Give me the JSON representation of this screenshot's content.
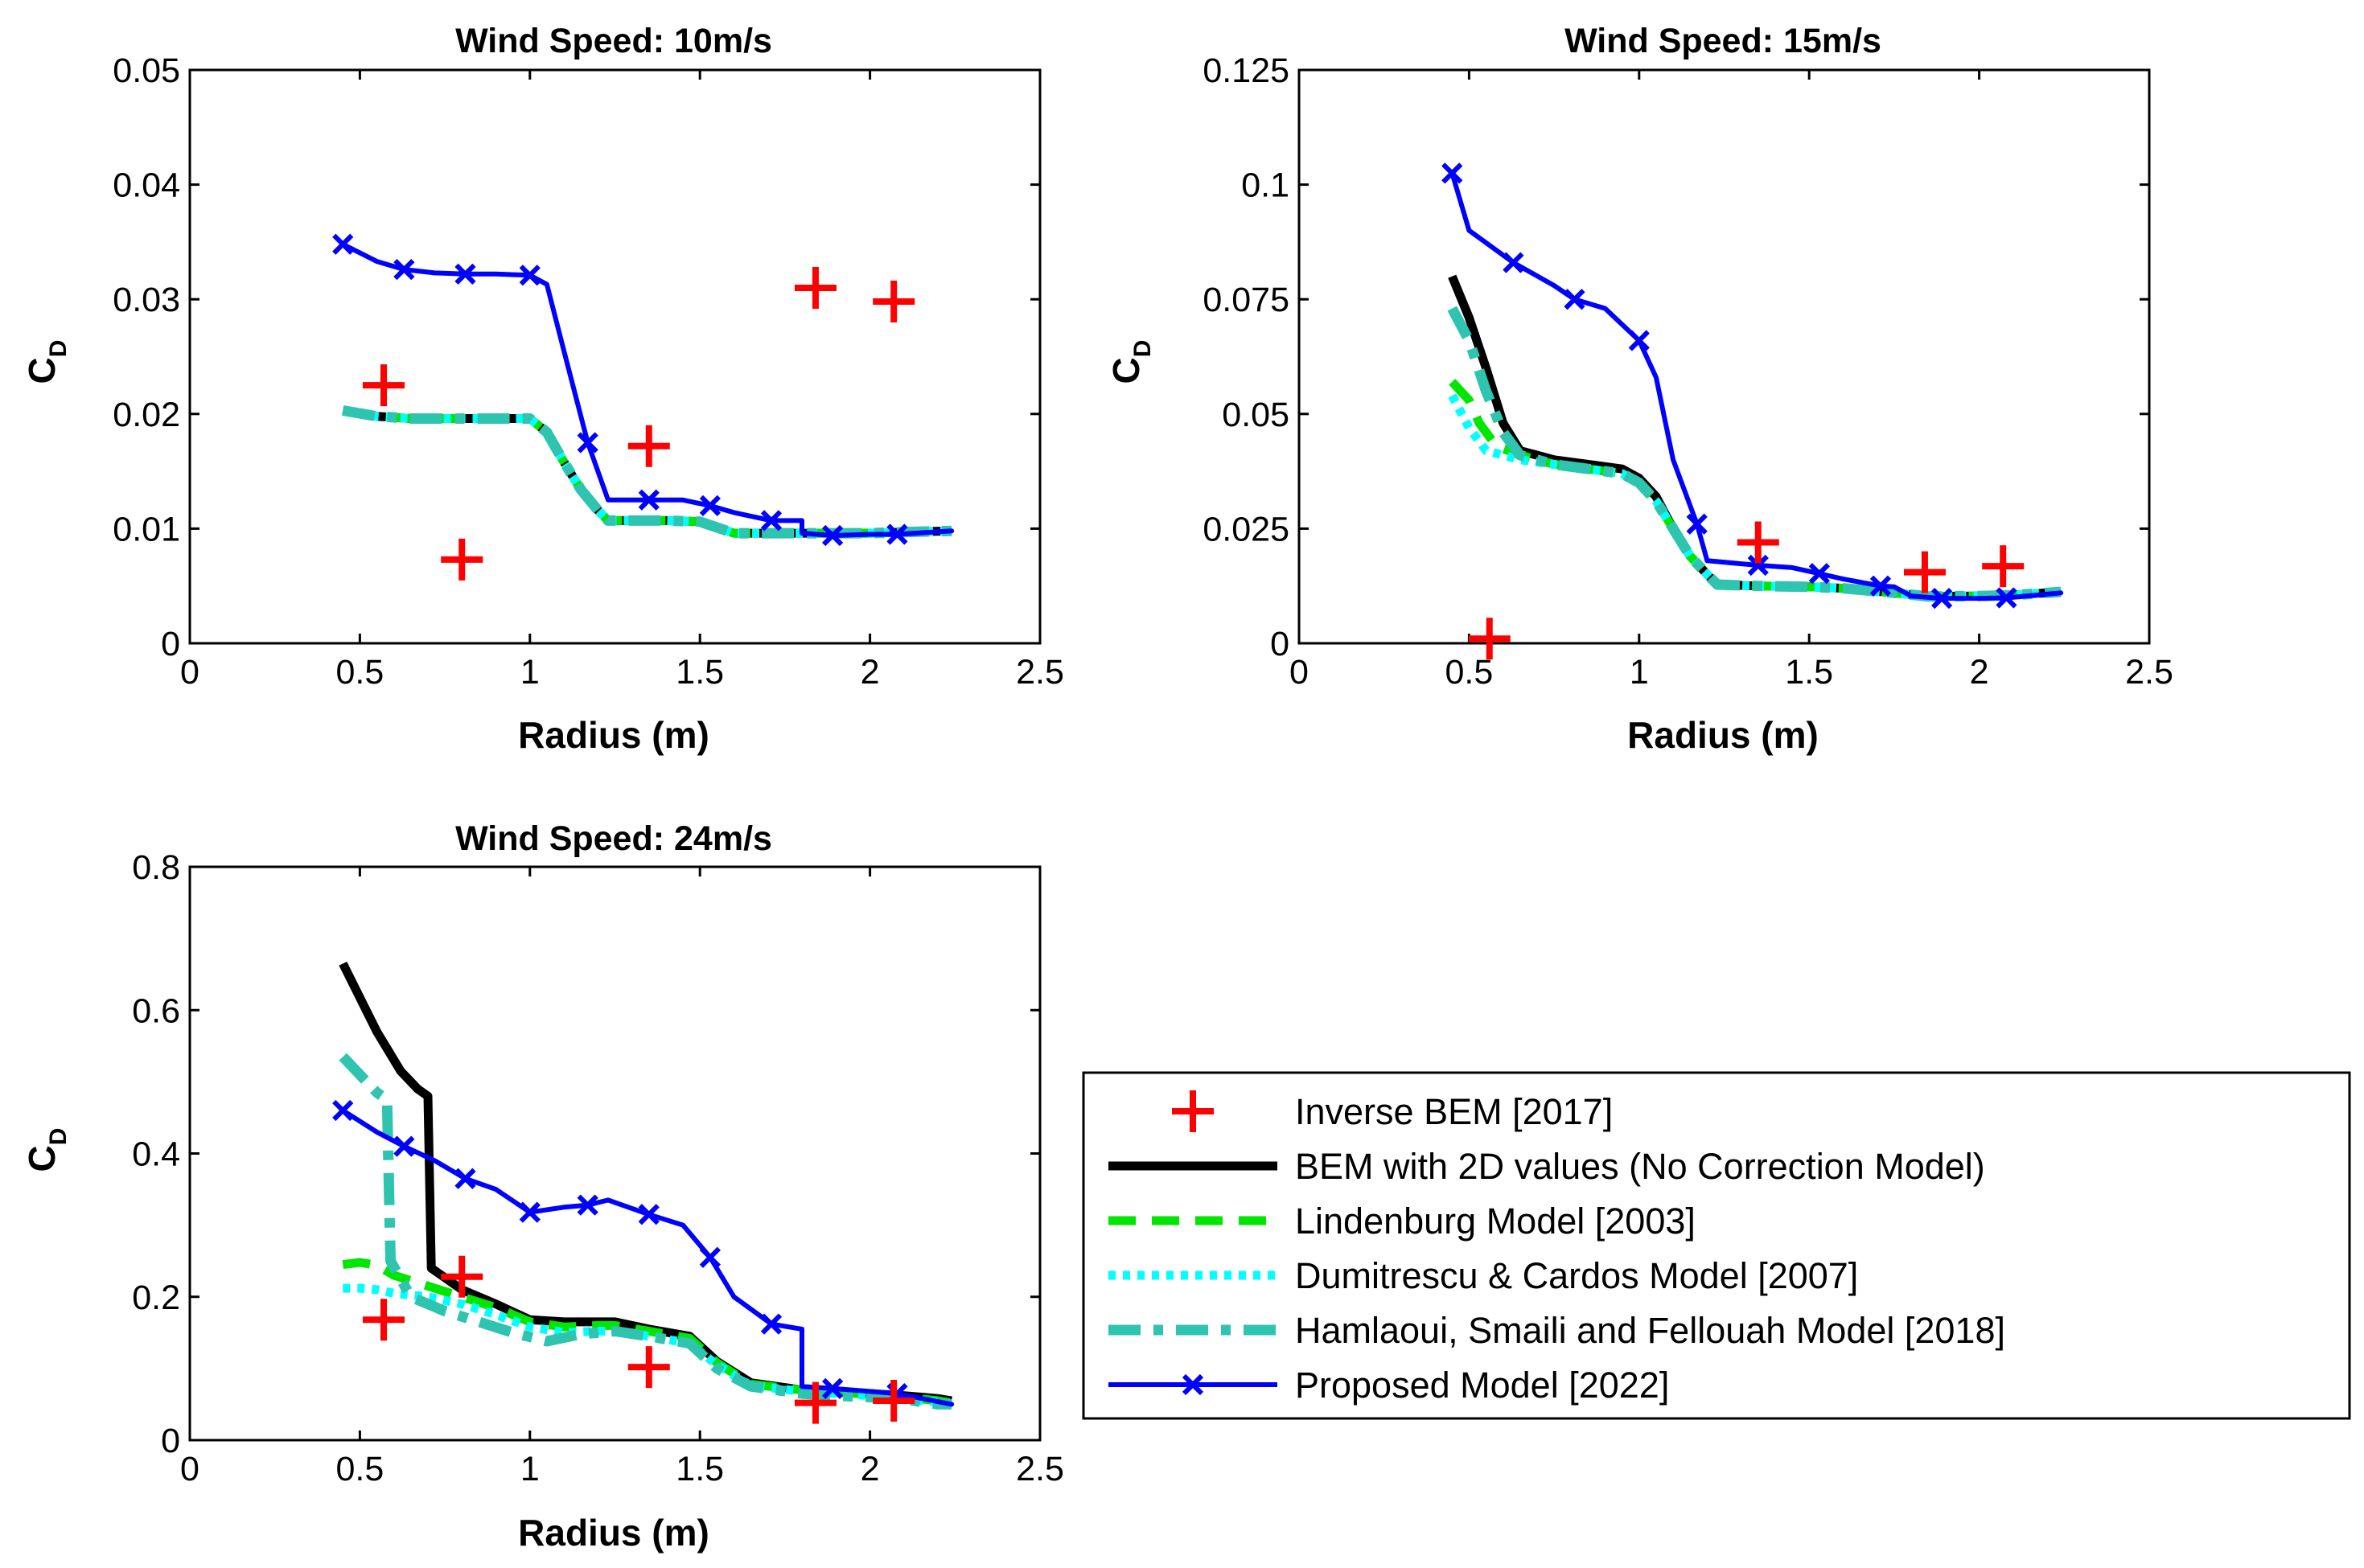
{
  "legend": [
    {
      "key": "inverse_bem",
      "label": "Inverse BEM [2017]"
    },
    {
      "key": "bem2d",
      "label": "BEM with 2D values (No Correction Model)"
    },
    {
      "key": "lindenburg",
      "label": "Lindenburg Model [2003]"
    },
    {
      "key": "dumitrescu",
      "label": "Dumitrescu & Cardos Model [2007]"
    },
    {
      "key": "hamlaoui",
      "label": "Hamlaoui, Smaili and Fellouah Model  [2018]"
    },
    {
      "key": "proposed",
      "label": "Proposed Model [2022]"
    }
  ],
  "colors": {
    "inverse_bem": "#ff0000",
    "bem2d": "#000000",
    "lindenburg": "#00e600",
    "dumitrescu": "#00ffff",
    "hamlaoui": "#2ec4b0",
    "proposed": "#0000ff"
  },
  "chart_data": [
    {
      "type": "line",
      "title": "Wind Speed: 10m/s",
      "xlabel": "Radius (m)",
      "ylabel": "C",
      "ylabel_sub": "D",
      "xlim": [
        0,
        2.5
      ],
      "ylim": [
        0,
        0.05
      ],
      "xticks": [
        0,
        0.5,
        1,
        1.5,
        2,
        2.5
      ],
      "xtick_labels": [
        "0",
        "0.5",
        "1",
        "1.5",
        "2",
        "2.5"
      ],
      "yticks": [
        0,
        0.01,
        0.02,
        0.03,
        0.04,
        0.05
      ],
      "ytick_labels": [
        "0",
        "0.01",
        "0.02",
        "0.03",
        "0.04",
        "0.05"
      ],
      "series": [
        {
          "key": "inverse_bem",
          "name": "Inverse BEM [2017]",
          "x": [
            0.57,
            0.8,
            1.35,
            1.84,
            2.07
          ],
          "y": [
            0.0225,
            0.0073,
            0.0172,
            0.031,
            0.0298
          ]
        },
        {
          "key": "bem2d",
          "name": "BEM with 2D values (No Correction Model)",
          "x": [
            0.45,
            0.55,
            0.65,
            0.8,
            0.9,
            1.0,
            1.05,
            1.1,
            1.15,
            1.2,
            1.23,
            1.3,
            1.4,
            1.5,
            1.6,
            1.7,
            1.8,
            1.9,
            2.0,
            2.1,
            2.24
          ],
          "y": [
            0.0203,
            0.0198,
            0.0196,
            0.0196,
            0.0196,
            0.0196,
            0.0184,
            0.0158,
            0.0134,
            0.0116,
            0.0107,
            0.0107,
            0.0107,
            0.0106,
            0.0096,
            0.0096,
            0.0096,
            0.0096,
            0.0096,
            0.0097,
            0.0098
          ]
        },
        {
          "key": "lindenburg",
          "name": "Lindenburg Model [2003]",
          "x": [
            0.45,
            0.55,
            0.65,
            0.8,
            0.9,
            1.0,
            1.05,
            1.1,
            1.15,
            1.2,
            1.23,
            1.3,
            1.4,
            1.5,
            1.6,
            1.7,
            1.8,
            1.9,
            2.0,
            2.1,
            2.24
          ],
          "y": [
            0.0203,
            0.0198,
            0.0196,
            0.0196,
            0.0196,
            0.0196,
            0.0184,
            0.0158,
            0.0134,
            0.0116,
            0.0107,
            0.0107,
            0.0107,
            0.0106,
            0.0096,
            0.0096,
            0.0096,
            0.0096,
            0.0096,
            0.0097,
            0.0098
          ]
        },
        {
          "key": "dumitrescu",
          "name": "Dumitrescu & Cardos Model [2007]",
          "x": [
            0.45,
            0.55,
            0.65,
            0.8,
            0.9,
            1.0,
            1.05,
            1.1,
            1.15,
            1.2,
            1.23,
            1.3,
            1.4,
            1.5,
            1.6,
            1.7,
            1.8,
            1.9,
            2.0,
            2.1,
            2.24
          ],
          "y": [
            0.0203,
            0.0198,
            0.0196,
            0.0196,
            0.0196,
            0.0196,
            0.0184,
            0.0158,
            0.0134,
            0.0116,
            0.0107,
            0.0107,
            0.0107,
            0.0106,
            0.0096,
            0.0096,
            0.0096,
            0.0096,
            0.0096,
            0.0097,
            0.0098
          ]
        },
        {
          "key": "hamlaoui",
          "name": "Hamlaoui, Smaili and Fellouah Model  [2018]",
          "x": [
            0.45,
            0.55,
            0.65,
            0.8,
            0.9,
            1.0,
            1.05,
            1.1,
            1.15,
            1.2,
            1.23,
            1.3,
            1.4,
            1.5,
            1.6,
            1.7,
            1.8,
            1.9,
            2.0,
            2.1,
            2.24
          ],
          "y": [
            0.0203,
            0.0198,
            0.0196,
            0.0196,
            0.0196,
            0.0196,
            0.0184,
            0.0158,
            0.0134,
            0.0116,
            0.0107,
            0.0107,
            0.0107,
            0.0106,
            0.0096,
            0.0096,
            0.0096,
            0.0096,
            0.0096,
            0.0097,
            0.0098
          ]
        },
        {
          "key": "proposed",
          "name": "Proposed Model [2022]",
          "x": [
            0.45,
            0.55,
            0.63,
            0.72,
            0.81,
            0.9,
            1.0,
            1.05,
            1.1,
            1.17,
            1.23,
            1.3,
            1.35,
            1.45,
            1.53,
            1.6,
            1.71,
            1.8,
            1.8,
            1.89,
            2.0,
            2.08,
            2.24
          ],
          "y": [
            0.0348,
            0.0333,
            0.0326,
            0.0323,
            0.0322,
            0.0322,
            0.0321,
            0.0313,
            0.0255,
            0.0175,
            0.0125,
            0.0125,
            0.0125,
            0.0125,
            0.012,
            0.0114,
            0.0107,
            0.0107,
            0.0096,
            0.0094,
            0.0095,
            0.0095,
            0.0098
          ],
          "markers_x": [
            0.45,
            0.63,
            0.81,
            1.0,
            1.17,
            1.35,
            1.53,
            1.71,
            1.89,
            2.08
          ],
          "markers_y": [
            0.0348,
            0.0326,
            0.0322,
            0.0321,
            0.0175,
            0.0125,
            0.012,
            0.0107,
            0.0094,
            0.0095
          ]
        }
      ]
    },
    {
      "type": "line",
      "title": "Wind Speed: 15m/s",
      "xlabel": "Radius (m)",
      "ylabel": "C",
      "ylabel_sub": "D",
      "xlim": [
        0,
        2.5
      ],
      "ylim": [
        0,
        0.125
      ],
      "xticks": [
        0,
        0.5,
        1,
        1.5,
        2,
        2.5
      ],
      "xtick_labels": [
        "0",
        "0.5",
        "1",
        "1.5",
        "2",
        "2.5"
      ],
      "yticks": [
        0,
        0.025,
        0.05,
        0.075,
        0.1,
        0.125
      ],
      "ytick_labels": [
        "0",
        "0.025",
        "0.05",
        "0.075",
        "0.1",
        "0.125"
      ],
      "series": [
        {
          "key": "inverse_bem",
          "name": "Inverse BEM [2017]",
          "x": [
            0.56,
            1.35,
            1.84,
            2.07
          ],
          "y": [
            0.001,
            0.022,
            0.0155,
            0.0168
          ]
        },
        {
          "key": "bem2d",
          "name": "BEM with 2D values (No Correction Model)",
          "x": [
            0.45,
            0.5,
            0.55,
            0.6,
            0.65,
            0.75,
            0.85,
            0.95,
            1.0,
            1.05,
            1.1,
            1.15,
            1.2,
            1.23,
            1.35,
            1.5,
            1.6,
            1.75,
            1.85,
            2.0,
            2.1,
            2.24
          ],
          "y": [
            0.08,
            0.071,
            0.06,
            0.048,
            0.042,
            0.04,
            0.039,
            0.038,
            0.036,
            0.032,
            0.025,
            0.019,
            0.015,
            0.0128,
            0.0125,
            0.0123,
            0.012,
            0.011,
            0.0102,
            0.0103,
            0.0105,
            0.0112
          ]
        },
        {
          "key": "lindenburg",
          "name": "Lindenburg Model [2003]",
          "x": [
            0.45,
            0.5,
            0.53,
            0.58,
            0.65,
            0.75,
            0.85,
            0.95,
            1.0,
            1.05,
            1.1,
            1.15,
            1.2,
            1.23,
            1.35,
            1.5,
            1.6,
            1.75,
            1.85,
            2.0,
            2.1,
            2.24
          ],
          "y": [
            0.057,
            0.053,
            0.048,
            0.043,
            0.041,
            0.039,
            0.038,
            0.037,
            0.035,
            0.031,
            0.025,
            0.019,
            0.015,
            0.0128,
            0.0125,
            0.0123,
            0.012,
            0.011,
            0.0102,
            0.0103,
            0.0105,
            0.0112
          ]
        },
        {
          "key": "dumitrescu",
          "name": "Dumitrescu & Cardos Model [2007]",
          "x": [
            0.45,
            0.5,
            0.55,
            0.6,
            0.65,
            0.75,
            0.85,
            0.95,
            1.0,
            1.05,
            1.1,
            1.15,
            1.2,
            1.23,
            1.35,
            1.5,
            1.6,
            1.75,
            1.85,
            2.0,
            2.1,
            2.24
          ],
          "y": [
            0.054,
            0.047,
            0.042,
            0.041,
            0.04,
            0.039,
            0.038,
            0.037,
            0.035,
            0.031,
            0.025,
            0.019,
            0.015,
            0.0128,
            0.0125,
            0.0123,
            0.012,
            0.011,
            0.0102,
            0.0103,
            0.0105,
            0.0112
          ]
        },
        {
          "key": "hamlaoui",
          "name": "Hamlaoui, Smaili and Fellouah Model  [2018]",
          "x": [
            0.45,
            0.5,
            0.55,
            0.6,
            0.65,
            0.75,
            0.85,
            0.95,
            1.0,
            1.05,
            1.1,
            1.15,
            1.2,
            1.23,
            1.35,
            1.5,
            1.6,
            1.75,
            1.85,
            2.0,
            2.1,
            2.24
          ],
          "y": [
            0.073,
            0.066,
            0.055,
            0.046,
            0.041,
            0.039,
            0.038,
            0.037,
            0.035,
            0.031,
            0.025,
            0.019,
            0.015,
            0.0128,
            0.0125,
            0.0123,
            0.012,
            0.011,
            0.0102,
            0.0103,
            0.0105,
            0.0112
          ]
        },
        {
          "key": "proposed",
          "name": "Proposed Model [2022]",
          "x": [
            0.45,
            0.5,
            0.63,
            0.75,
            0.81,
            0.9,
            1.0,
            1.05,
            1.1,
            1.17,
            1.2,
            1.35,
            1.45,
            1.53,
            1.6,
            1.71,
            1.75,
            1.8,
            1.89,
            2.0,
            2.08,
            2.24
          ],
          "y": [
            0.1025,
            0.09,
            0.083,
            0.078,
            0.075,
            0.073,
            0.066,
            0.058,
            0.04,
            0.026,
            0.018,
            0.017,
            0.0165,
            0.0152,
            0.014,
            0.0125,
            0.0123,
            0.0103,
            0.0098,
            0.0098,
            0.0099,
            0.011
          ],
          "markers_x": [
            0.45,
            0.63,
            0.81,
            1.0,
            1.17,
            1.35,
            1.53,
            1.71,
            1.89,
            2.08
          ],
          "markers_y": [
            0.1025,
            0.083,
            0.075,
            0.066,
            0.026,
            0.017,
            0.0152,
            0.0125,
            0.0098,
            0.0099
          ]
        }
      ]
    },
    {
      "type": "line",
      "title": "Wind Speed: 24m/s",
      "xlabel": "Radius (m)",
      "ylabel": "C",
      "ylabel_sub": "D",
      "xlim": [
        0,
        2.5
      ],
      "ylim": [
        0,
        0.8
      ],
      "xticks": [
        0,
        0.5,
        1,
        1.5,
        2,
        2.5
      ],
      "xtick_labels": [
        "0",
        "0.5",
        "1",
        "1.5",
        "2",
        "2.5"
      ],
      "yticks": [
        0,
        0.2,
        0.4,
        0.6,
        0.8
      ],
      "ytick_labels": [
        "0",
        "0.2",
        "0.4",
        "0.6",
        "0.8"
      ],
      "series": [
        {
          "key": "inverse_bem",
          "name": "Inverse BEM [2017]",
          "x": [
            0.57,
            0.8,
            1.35,
            1.84,
            2.07
          ],
          "y": [
            0.168,
            0.228,
            0.102,
            0.052,
            0.055
          ]
        },
        {
          "key": "bem2d",
          "name": "BEM with 2D values (No Correction Model)",
          "x": [
            0.45,
            0.55,
            0.62,
            0.67,
            0.7,
            0.71,
            0.8,
            0.9,
            1.0,
            1.1,
            1.2,
            1.25,
            1.35,
            1.47,
            1.55,
            1.65,
            1.8,
            1.9,
            2.0,
            2.1,
            2.2,
            2.24
          ],
          "y": [
            0.665,
            0.57,
            0.515,
            0.49,
            0.48,
            0.24,
            0.21,
            0.19,
            0.168,
            0.165,
            0.165,
            0.165,
            0.155,
            0.145,
            0.11,
            0.08,
            0.07,
            0.068,
            0.065,
            0.062,
            0.058,
            0.055
          ]
        },
        {
          "key": "lindenburg",
          "name": "Lindenburg Model [2003]",
          "x": [
            0.45,
            0.5,
            0.55,
            0.6,
            0.7,
            0.8,
            0.9,
            1.0,
            1.1,
            1.2,
            1.25,
            1.35,
            1.47,
            1.55,
            1.65,
            1.8,
            1.9,
            2.0,
            2.1,
            2.2,
            2.24
          ],
          "y": [
            0.245,
            0.248,
            0.244,
            0.23,
            0.215,
            0.2,
            0.185,
            0.165,
            0.158,
            0.16,
            0.16,
            0.152,
            0.142,
            0.108,
            0.078,
            0.07,
            0.067,
            0.064,
            0.06,
            0.055,
            0.052
          ]
        },
        {
          "key": "dumitrescu",
          "name": "Dumitrescu & Cardos Model [2007]",
          "x": [
            0.45,
            0.5,
            0.55,
            0.6,
            0.7,
            0.8,
            0.9,
            1.0,
            1.1,
            1.2,
            1.25,
            1.35,
            1.47,
            1.55,
            1.65,
            1.8,
            1.9,
            2.0,
            2.1,
            2.2,
            2.24
          ],
          "y": [
            0.212,
            0.212,
            0.21,
            0.205,
            0.2,
            0.19,
            0.175,
            0.158,
            0.15,
            0.152,
            0.152,
            0.145,
            0.135,
            0.105,
            0.076,
            0.068,
            0.065,
            0.062,
            0.058,
            0.053,
            0.05
          ]
        },
        {
          "key": "hamlaoui",
          "name": "Hamlaoui, Smaili and Fellouah Model  [2018]",
          "x": [
            0.45,
            0.5,
            0.55,
            0.58,
            0.59,
            0.65,
            0.75,
            0.85,
            0.95,
            1.05,
            1.15,
            1.25,
            1.35,
            1.47,
            1.55,
            1.65,
            1.8,
            1.9,
            2.0,
            2.1,
            2.2,
            2.24
          ],
          "y": [
            0.535,
            0.51,
            0.485,
            0.475,
            0.25,
            0.2,
            0.18,
            0.165,
            0.15,
            0.138,
            0.148,
            0.152,
            0.145,
            0.135,
            0.1,
            0.075,
            0.065,
            0.062,
            0.06,
            0.057,
            0.05,
            0.05
          ]
        },
        {
          "key": "proposed",
          "name": "Proposed Model [2022]",
          "x": [
            0.45,
            0.55,
            0.63,
            0.72,
            0.81,
            0.9,
            1.0,
            1.1,
            1.17,
            1.23,
            1.35,
            1.45,
            1.53,
            1.6,
            1.71,
            1.8,
            1.8,
            1.89,
            2.0,
            2.08,
            2.24
          ],
          "y": [
            0.46,
            0.43,
            0.41,
            0.39,
            0.365,
            0.35,
            0.318,
            0.325,
            0.328,
            0.335,
            0.315,
            0.3,
            0.255,
            0.2,
            0.162,
            0.155,
            0.075,
            0.072,
            0.068,
            0.065,
            0.05
          ],
          "markers_x": [
            0.45,
            0.63,
            0.81,
            1.0,
            1.17,
            1.35,
            1.53,
            1.71,
            1.89,
            2.08
          ],
          "markers_y": [
            0.46,
            0.41,
            0.365,
            0.318,
            0.328,
            0.315,
            0.255,
            0.162,
            0.072,
            0.065
          ]
        }
      ]
    }
  ]
}
